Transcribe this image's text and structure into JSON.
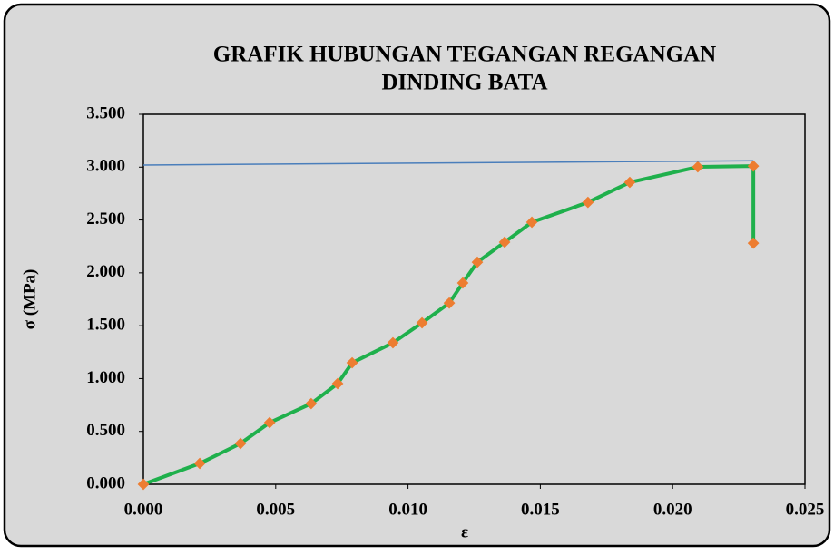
{
  "chart_data": {
    "type": "line",
    "title": [
      "GRAFIK HUBUNGAN TEGANGAN REGANGAN",
      "DINDING BATA"
    ],
    "x_label": "ε",
    "y_label": "σ (MPa)",
    "xlim": [
      0,
      0.025
    ],
    "xticks": [
      {
        "value": 0,
        "label": "0.000"
      },
      {
        "value": 0.005,
        "label": "0.005"
      },
      {
        "value": 0.01,
        "label": "0.010"
      },
      {
        "value": 0.015,
        "label": "0.015"
      },
      {
        "value": 0.02,
        "label": "0.020"
      },
      {
        "value": 0.025,
        "label": "0.025"
      }
    ],
    "ylim": [
      0,
      3.5
    ],
    "yticks": [
      {
        "value": 0,
        "label": "0.000"
      },
      {
        "value": 0.5,
        "label": "0.500"
      },
      {
        "value": 1,
        "label": "1.000"
      },
      {
        "value": 1.5,
        "label": "1.500"
      },
      {
        "value": 2,
        "label": "2.000"
      },
      {
        "value": 2.5,
        "label": "2.500"
      },
      {
        "value": 3,
        "label": "3.000"
      },
      {
        "value": 3.5,
        "label": "3.500"
      }
    ],
    "series": [
      {
        "color": "#1fb04c",
        "marker_color": "#ed7d31",
        "x": [
          0,
          0.00213,
          0.00367,
          0.00477,
          0.00634,
          0.00734,
          0.00789,
          0.00943,
          0.01053,
          0.01156,
          0.01207,
          0.01262,
          0.01365,
          0.01468,
          0.0168,
          0.01838,
          0.02095,
          0.02305,
          0.02305
        ],
        "values": [
          0,
          0.197,
          0.386,
          0.583,
          0.763,
          0.952,
          1.149,
          1.338,
          1.527,
          1.715,
          1.904,
          2.101,
          2.29,
          2.479,
          2.667,
          2.856,
          3.002,
          3.01,
          2.281
        ]
      },
      {
        "color": "#4a7ebb",
        "x": [
          0,
          0.02305
        ],
        "values": [
          3.02,
          3.06
        ]
      }
    ]
  }
}
